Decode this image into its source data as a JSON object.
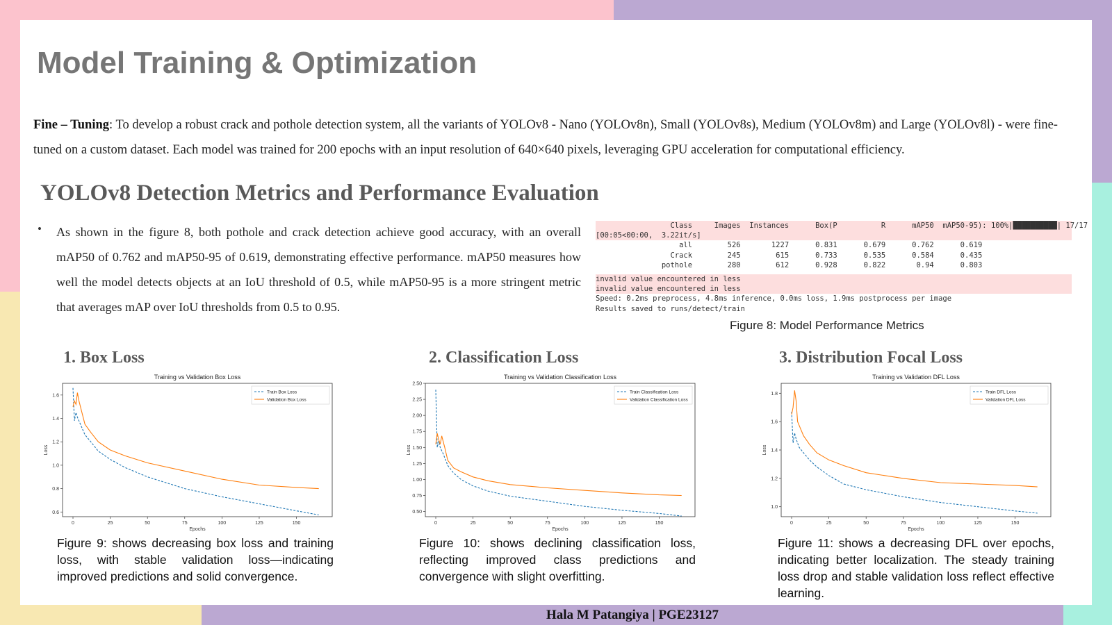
{
  "slide": {
    "title": "Model Training & Optimization",
    "intro_label": "Fine – Tuning",
    "intro_text": ": To develop a robust crack and pothole detection system, all the variants of YOLOv8 - Nano (YOLOv8n), Small (YOLOv8s), Medium (YOLOv8m) and Large (YOLOv8l) - were fine-tuned on a custom dataset. Each model was trained for 200 epochs with an input resolution of 640×640 pixels, leveraging GPU acceleration for computational efficiency.",
    "section_heading": "YOLOv8 Detection Metrics and Performance Evaluation",
    "bullet_marker": "•",
    "bullet_text": "As shown in the figure 8, both pothole and crack detection achieve good accuracy, with an overall mAP50 of 0.762 and mAP50-95 of 0.619, demonstrating effective performance. mAP50 measures how well the model detects objects at an IoU threshold of 0.5, while mAP50-95 is a more stringent metric that averages mAP over IoU thresholds from 0.5 to 0.95.",
    "footer": "Hala M Patangiya | PGE23127"
  },
  "console": {
    "lines": [
      "                 Class     Images  Instances      Box(P          R      mAP50  mAP50-95): 100%|██████████| 17/17",
      "[00:05<00:00,  3.22it/s]",
      "                   all        526       1227      0.831      0.679      0.762      0.619",
      "                 Crack        245        615      0.733      0.535      0.584      0.435",
      "               pothole        280        612      0.928      0.822       0.94      0.803",
      "invalid value encountered in less",
      "invalid value encountered in less",
      "Speed: 0.2ms preprocess, 4.8ms inference, 0.0ms loss, 1.9ms postprocess per image",
      "Results saved to runs/detect/train"
    ],
    "figure_caption": "Figure 8: Model Performance Metrics"
  },
  "sections": [
    {
      "heading": "1. Box Loss",
      "caption": "Figure 9: shows decreasing box loss and training loss, with stable validation loss—indicating improved predictions and solid convergence."
    },
    {
      "heading": "2. Classification Loss",
      "caption": "Figure 10: shows declining classification loss, reflecting improved class predictions and convergence with slight overfitting."
    },
    {
      "heading": "3. Distribution Focal Loss",
      "caption": "Figure 11: shows a decreasing DFL over epochs, indicating better localization. The steady training loss drop and stable validation loss reflect effective learning."
    }
  ],
  "colors": {
    "pink": "#fcc3cd",
    "purple": "#bba8d2",
    "yellow": "#f8e8b2",
    "mint": "#a8f0df",
    "train": "#1f77b4",
    "val": "#ff7f0e"
  },
  "chart_data": [
    {
      "type": "line",
      "title": "Training vs Validation Box Loss",
      "xlabel": "Epochs",
      "ylabel": "Loss",
      "xlim": [
        -7,
        174
      ],
      "ylim": [
        0.56,
        1.7
      ],
      "xticks": [
        0,
        25,
        50,
        75,
        100,
        125,
        150
      ],
      "yticks": [
        0.6,
        0.8,
        1.0,
        1.2,
        1.4,
        1.6
      ],
      "ytick_labels": [
        "0.6",
        "0.8",
        "1.0",
        "1.2",
        "1.4",
        "1.6"
      ],
      "legend": "top-right",
      "series": [
        {
          "name": "Train Box Loss",
          "style": "dashed",
          "x": [
            0,
            1,
            2,
            3,
            5,
            8,
            12,
            17,
            25,
            35,
            50,
            75,
            100,
            125,
            150,
            165
          ],
          "y": [
            1.66,
            1.38,
            1.45,
            1.41,
            1.35,
            1.26,
            1.2,
            1.12,
            1.05,
            0.98,
            0.9,
            0.8,
            0.73,
            0.67,
            0.61,
            0.575
          ]
        },
        {
          "name": "Validation Box Loss",
          "style": "solid",
          "x": [
            0,
            1,
            2,
            3,
            4,
            6,
            8,
            12,
            17,
            25,
            35,
            50,
            75,
            100,
            125,
            150,
            165
          ],
          "y": [
            1.5,
            1.55,
            1.52,
            1.62,
            1.55,
            1.45,
            1.35,
            1.28,
            1.2,
            1.13,
            1.08,
            1.02,
            0.95,
            0.88,
            0.83,
            0.81,
            0.8
          ]
        }
      ]
    },
    {
      "type": "line",
      "title": "Training vs Validation Classification Loss",
      "xlabel": "Epochs",
      "ylabel": "Loss",
      "xlim": [
        -7,
        174
      ],
      "ylim": [
        0.42,
        2.5
      ],
      "xticks": [
        0,
        25,
        50,
        75,
        100,
        125,
        150
      ],
      "yticks": [
        0.5,
        0.75,
        1.0,
        1.25,
        1.5,
        1.75,
        2.0,
        2.25,
        2.5
      ],
      "ytick_labels": [
        "0.50",
        "0.75",
        "1.00",
        "1.25",
        "1.50",
        "1.75",
        "2.00",
        "2.25",
        "2.50"
      ],
      "legend": "top-right",
      "series": [
        {
          "name": "Train Classification Loss",
          "style": "dashed",
          "x": [
            0,
            1,
            2,
            3,
            5,
            8,
            12,
            17,
            25,
            35,
            50,
            75,
            100,
            125,
            150,
            165
          ],
          "y": [
            2.4,
            1.5,
            1.6,
            1.5,
            1.4,
            1.22,
            1.1,
            1.0,
            0.9,
            0.82,
            0.74,
            0.66,
            0.58,
            0.52,
            0.47,
            0.43
          ]
        },
        {
          "name": "Validation Classification Loss",
          "style": "solid",
          "x": [
            0,
            1,
            2,
            3,
            4,
            6,
            8,
            12,
            17,
            25,
            35,
            50,
            75,
            100,
            125,
            150,
            165
          ],
          "y": [
            1.55,
            1.72,
            1.62,
            1.55,
            1.68,
            1.5,
            1.3,
            1.18,
            1.12,
            1.04,
            0.98,
            0.92,
            0.87,
            0.83,
            0.79,
            0.76,
            0.75
          ]
        }
      ]
    },
    {
      "type": "line",
      "title": "Training vs Validation DFL Loss",
      "xlabel": "Epochs",
      "ylabel": "Loss",
      "xlim": [
        -7,
        174
      ],
      "ylim": [
        0.93,
        1.87
      ],
      "xticks": [
        0,
        25,
        50,
        75,
        100,
        125,
        150
      ],
      "yticks": [
        1.0,
        1.2,
        1.4,
        1.6,
        1.8
      ],
      "ytick_labels": [
        "1.0",
        "1.2",
        "1.4",
        "1.6",
        "1.8"
      ],
      "legend": "top-right",
      "series": [
        {
          "name": "Train DFL Loss",
          "style": "dashed",
          "x": [
            0,
            1,
            2,
            3,
            5,
            8,
            12,
            17,
            25,
            35,
            50,
            75,
            100,
            125,
            150,
            165
          ],
          "y": [
            1.67,
            1.45,
            1.52,
            1.48,
            1.42,
            1.38,
            1.33,
            1.28,
            1.22,
            1.16,
            1.12,
            1.07,
            1.03,
            1.0,
            0.97,
            0.955
          ]
        },
        {
          "name": "Validation DFL Loss",
          "style": "solid",
          "x": [
            0,
            1,
            2,
            3,
            4,
            6,
            8,
            12,
            17,
            25,
            35,
            50,
            75,
            100,
            125,
            150,
            165
          ],
          "y": [
            1.65,
            1.7,
            1.82,
            1.75,
            1.6,
            1.55,
            1.5,
            1.44,
            1.38,
            1.33,
            1.29,
            1.24,
            1.2,
            1.17,
            1.16,
            1.15,
            1.14
          ]
        }
      ]
    }
  ]
}
